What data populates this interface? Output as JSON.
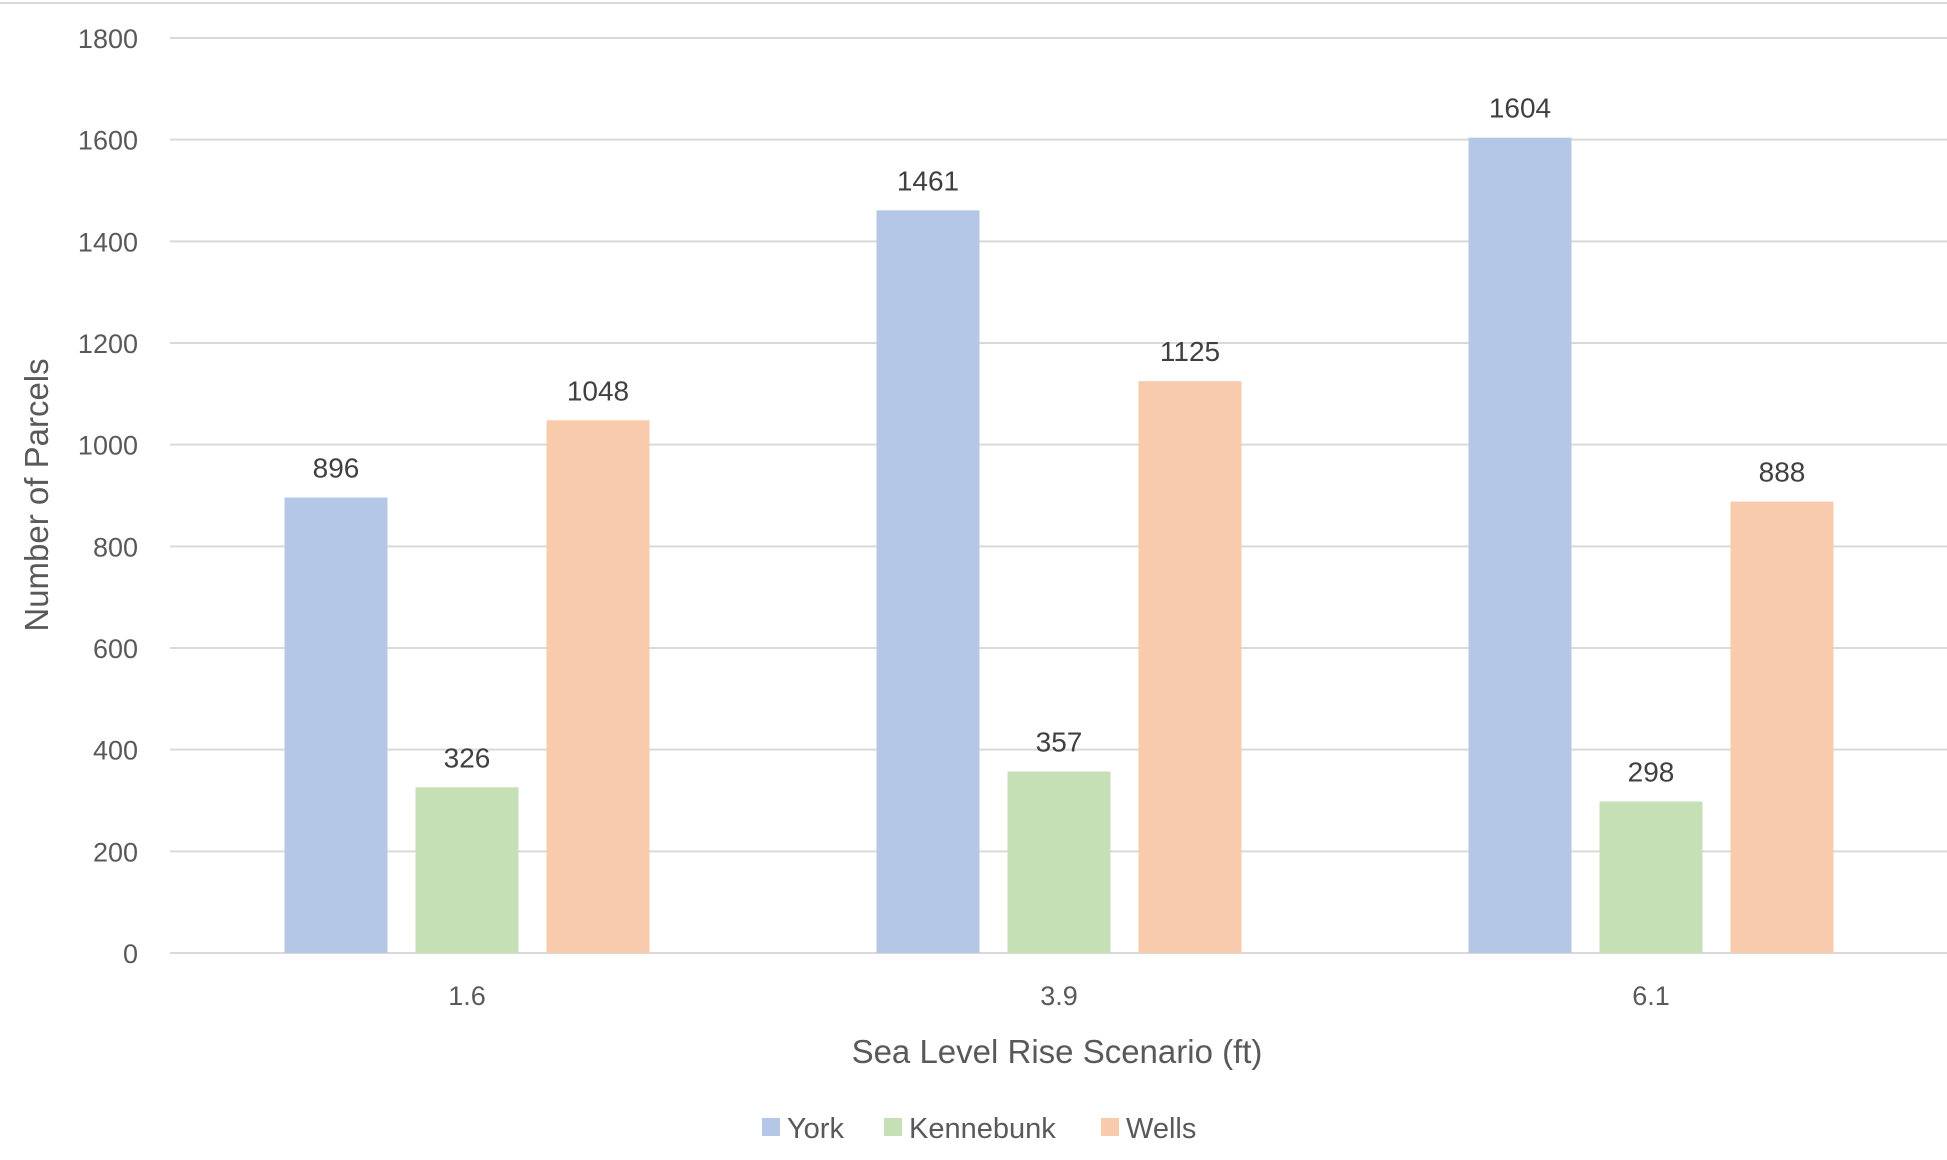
{
  "chart_data": {
    "type": "bar",
    "title": "",
    "xlabel": "Sea Level Rise Scenario (ft)",
    "ylabel": "Number of Parcels",
    "categories": [
      "1.6",
      "3.9",
      "6.1"
    ],
    "series": [
      {
        "name": "York",
        "values": [
          896,
          1461,
          1604
        ],
        "color": "#b4c7e7"
      },
      {
        "name": "Kennebunk",
        "values": [
          326,
          357,
          298
        ],
        "color": "#c5e0b4"
      },
      {
        "name": "Wells",
        "values": [
          1048,
          1125,
          888
        ],
        "color": "#f8cbad"
      }
    ],
    "ylim": [
      0,
      1800
    ],
    "yticks": [
      0,
      200,
      400,
      600,
      800,
      1000,
      1200,
      1400,
      1600,
      1800
    ],
    "grid": true,
    "legend_position": "bottom",
    "data_labels": true
  }
}
